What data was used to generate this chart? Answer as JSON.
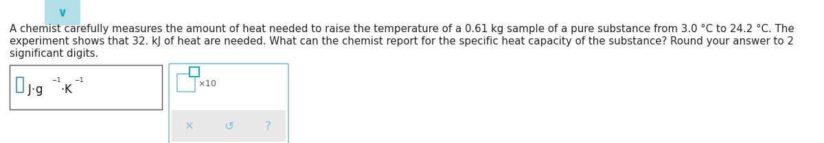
{
  "bg_color": "#ffffff",
  "text_lines": [
    "A chemist carefully measures the amount of heat needed to raise the temperature of a 0.61 kg sample of a pure substance from 3.0 °C to 24.2 °C. The",
    "experiment shows that 32. kJ of heat are needed. What can the chemist report for the specific heat capacity of the substance? Round your answer to 2",
    "significant digits."
  ],
  "text_color": "#222222",
  "text_fontsize": 10.8,
  "chevron_bg": "#b3e0e8",
  "chevron_color": "#1aabb8",
  "box1_edge": "#555555",
  "box2_edge": "#7bbdd4",
  "box2_gray_bg": "#e8e8e8",
  "unit_color": "#111111",
  "action_color": "#7bbdd4",
  "teal_color": "#1aabb8"
}
